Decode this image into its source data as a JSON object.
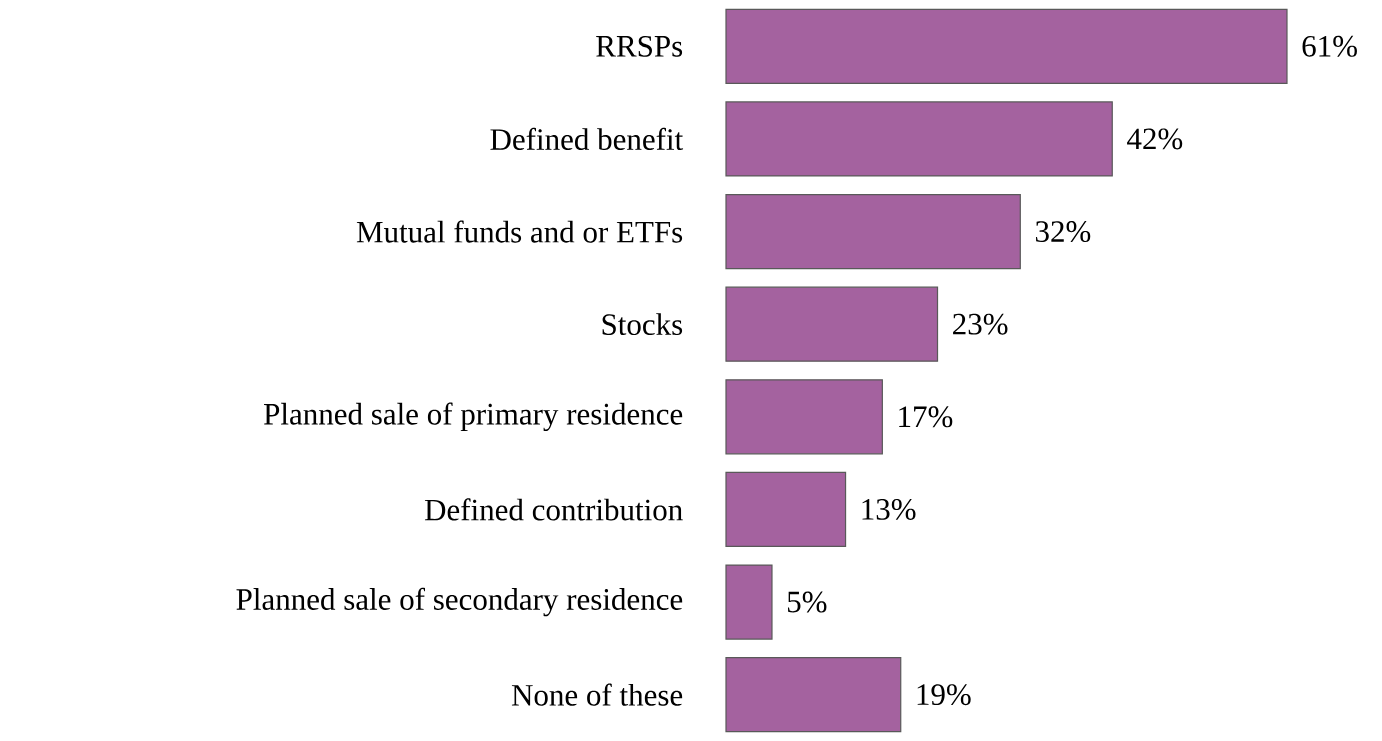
{
  "chart_data": {
    "type": "bar",
    "orientation": "horizontal",
    "categories": [
      "RRSPs",
      "Defined benefit",
      "Mutual funds and or ETFs",
      "Stocks",
      "Planned sale of primary residence",
      "Defined contribution",
      "Planned sale of secondary residence",
      "None of these"
    ],
    "values": [
      61,
      42,
      32,
      23,
      17,
      13,
      5,
      19
    ],
    "value_labels": [
      "61%",
      "42%",
      "32%",
      "23%",
      "17%",
      "13%",
      "5%",
      "19%"
    ],
    "color": "#a4629f"
  }
}
